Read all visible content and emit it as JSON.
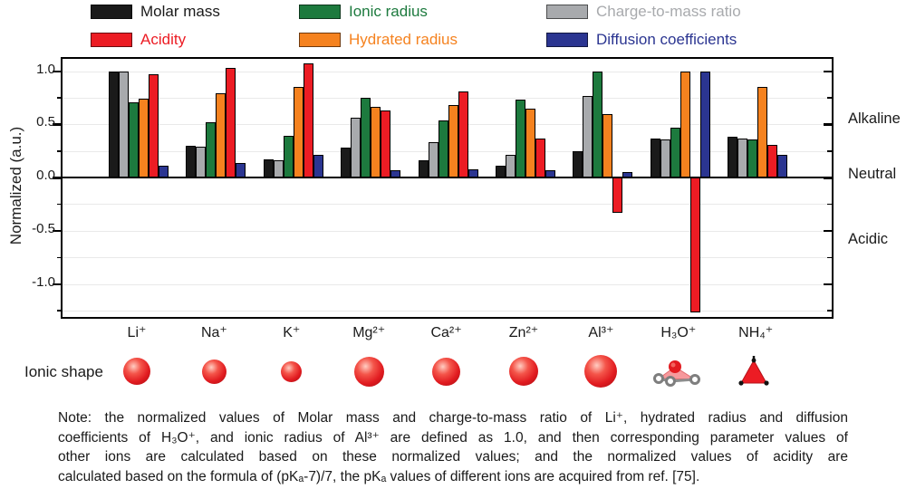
{
  "figure": {
    "y_axis_label": "Normalized (a.u.)",
    "y_ticks": [
      "1.0",
      "0.5",
      "0.0",
      "-0.5",
      "-1.0"
    ],
    "side_labels": [
      "Alkaline",
      "Neutral",
      "Acidic"
    ],
    "ionic_shape_label": "Ionic shape"
  },
  "chart_data": {
    "type": "bar",
    "title": "",
    "xlabel": "",
    "ylabel": "Normalized (a.u.)",
    "ylim": [
      -1.3,
      1.12
    ],
    "grid": "light horizontal gridlines every 0.25, thick black zero line",
    "legend_position": "top, 2 rows x 3 columns",
    "categories": [
      "Li⁺",
      "Na⁺",
      "K⁺",
      "Mg²⁺",
      "Ca²⁺",
      "Zn²⁺",
      "Al³⁺",
      "H₃O⁺",
      "NH₄⁺"
    ],
    "series": [
      {
        "name": "Molar mass",
        "color": "#1a1a1a",
        "values": [
          1.0,
          0.3,
          0.17,
          0.28,
          0.16,
          0.11,
          0.25,
          0.37,
          0.38
        ]
      },
      {
        "name": "Charge-to-mass ratio",
        "color": "#a8aaad",
        "values": [
          1.0,
          0.29,
          0.16,
          0.56,
          0.33,
          0.21,
          0.77,
          0.36,
          0.37
        ]
      },
      {
        "name": "Ionic radius",
        "color": "#1d7a3e",
        "values": [
          0.71,
          0.52,
          0.39,
          0.75,
          0.54,
          0.73,
          1.0,
          0.47,
          0.36
        ]
      },
      {
        "name": "Hydrated radius",
        "color": "#f5821f",
        "values": [
          0.74,
          0.79,
          0.85,
          0.66,
          0.68,
          0.65,
          0.6,
          1.0,
          0.85
        ]
      },
      {
        "name": "Acidity",
        "color": "#ec1c24",
        "values": [
          0.97,
          1.03,
          1.07,
          0.63,
          0.81,
          0.37,
          -0.33,
          -1.27,
          0.31
        ]
      },
      {
        "name": "Diffusion coefficients",
        "color": "#2b3591",
        "values": [
          0.11,
          0.14,
          0.21,
          0.07,
          0.08,
          0.07,
          0.05,
          1.0,
          0.21
        ]
      }
    ],
    "legend_display_order": [
      0,
      2,
      1,
      4,
      3,
      5
    ],
    "ionic_shapes": [
      {
        "ion": "Li⁺",
        "kind": "sphere",
        "size": 30
      },
      {
        "ion": "Na⁺",
        "kind": "sphere",
        "size": 27
      },
      {
        "ion": "K⁺",
        "kind": "sphere",
        "size": 23
      },
      {
        "ion": "Mg²⁺",
        "kind": "sphere",
        "size": 33
      },
      {
        "ion": "Ca²⁺",
        "kind": "sphere",
        "size": 31
      },
      {
        "ion": "Zn²⁺",
        "kind": "sphere",
        "size": 32
      },
      {
        "ion": "Al³⁺",
        "kind": "sphere",
        "size": 36
      },
      {
        "ion": "H₃O⁺",
        "kind": "molecule",
        "size": 56
      },
      {
        "ion": "NH₄⁺",
        "kind": "tetrahedron",
        "size": 30
      }
    ]
  },
  "note": {
    "lines": [
      "Note: the normalized values of Molar mass and charge-to-mass ratio of Li⁺, hydrated radius and diffusion",
      "coefficients of H₃O⁺, and ionic radius of Al³⁺ are defined as 1.0, and then corresponding parameter values of",
      "other ions are calculated based on these normalized values; and the normalized values of acidity are",
      "calculated based on the formula of (pKₐ-7)/7, the pKₐ values of different ions are acquired from ref. [75]."
    ]
  }
}
